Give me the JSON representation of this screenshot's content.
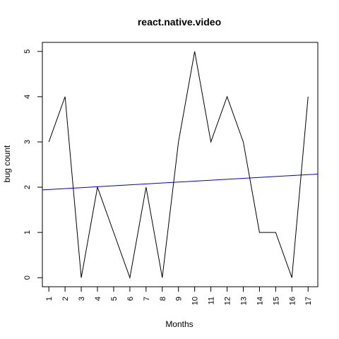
{
  "chart_data": {
    "type": "line",
    "title": "react.native.video",
    "xlabel": "Months",
    "ylabel": "bug count",
    "x": [
      1,
      2,
      3,
      4,
      5,
      6,
      7,
      8,
      9,
      10,
      11,
      12,
      13,
      14,
      15,
      16,
      17
    ],
    "x_tick_labels": [
      "1",
      "2",
      "3",
      "4",
      "5",
      "6",
      "7",
      "8",
      "9",
      "10",
      "11",
      "12",
      "13",
      "14",
      "15",
      "16",
      "17"
    ],
    "y_ticks": [
      0,
      1,
      2,
      3,
      4,
      5
    ],
    "y_tick_labels": [
      "0",
      "1",
      "2",
      "3",
      "4",
      "5"
    ],
    "series": [
      {
        "values": [
          3,
          4,
          0,
          2,
          1,
          0,
          2,
          0,
          3,
          5,
          3,
          4,
          3,
          1,
          1,
          0,
          4
        ],
        "color": "#000000"
      }
    ],
    "trend_line": {
      "x": [
        0.6,
        17.6
      ],
      "y": [
        1.94,
        2.29
      ],
      "color": "#0000cc"
    },
    "xlim": [
      0.6,
      17.6
    ],
    "ylim": [
      -0.2,
      5.2
    ],
    "grid": false,
    "legend": "none"
  }
}
